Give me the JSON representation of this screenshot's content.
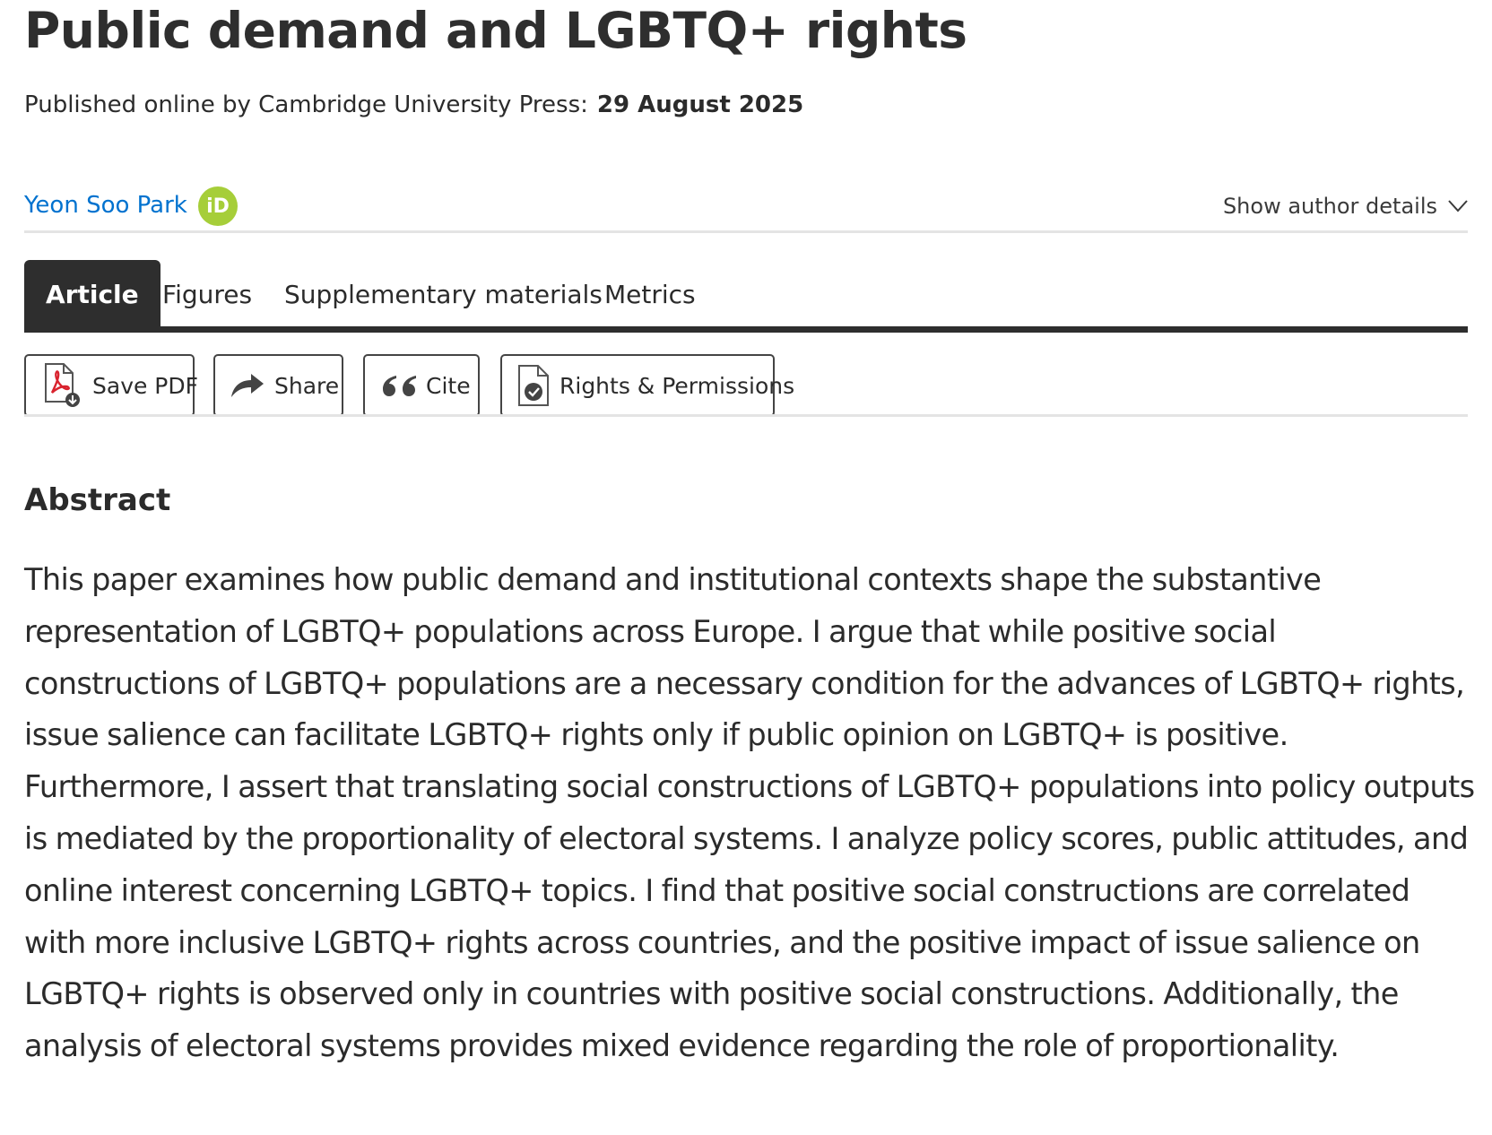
{
  "article": {
    "title": "Public demand and LGBTQ+ rights",
    "published_label": "Published online by Cambridge University Press:",
    "published_date": "29 August 2025"
  },
  "author": {
    "name": "Yeon Soo Park",
    "orcid_badge": "iD",
    "show_details_label": "Show author details",
    "orcid_color": "#a6ce39",
    "link_color": "#0072cf"
  },
  "tabs": [
    {
      "label": "Article",
      "active": true
    },
    {
      "label": "Figures",
      "active": false
    },
    {
      "label": "Supplementary materials",
      "active": false
    },
    {
      "label": "Metrics",
      "active": false
    }
  ],
  "actions": {
    "save_pdf": {
      "label": "Save PDF",
      "icon": "pdf-download-icon"
    },
    "share": {
      "label": "Share",
      "icon": "share-arrow-icon"
    },
    "cite": {
      "label": "Cite",
      "icon": "quote-icon"
    },
    "rights": {
      "label": "Rights & Permissions",
      "icon": "document-check-icon"
    }
  },
  "abstract": {
    "heading": "Abstract",
    "text": "This paper examines how public demand and institutional contexts shape the substantive representation of LGBTQ+ populations across Europe. I argue that while positive social constructions of LGBTQ+ populations are a necessary condition for the advances of LGBTQ+ rights, issue salience can facilitate LGBTQ+ rights only if public opinion on LGBTQ+ is positive. Furthermore, I assert that translating social constructions of LGBTQ+ populations into policy outputs is mediated by the proportionality of electoral systems. I analyze policy scores, public attitudes, and online interest concerning LGBTQ+ topics. I find that positive social constructions are correlated with more inclusive LGBTQ+ rights across countries, and the positive impact of issue salience on LGBTQ+ rights is observed only in countries with positive social constructions. Additionally, the analysis of electoral systems provides mixed evidence regarding the role of proportionality."
  }
}
